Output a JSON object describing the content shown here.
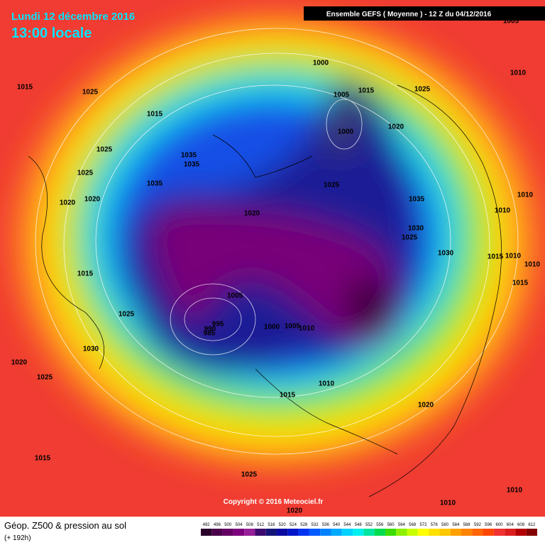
{
  "header": {
    "date": "Lundi 12 décembre 2016",
    "time": "13:00 locale",
    "run": "Ensemble GEFS  ( Moyenne )  -  12 Z du 04/12/2016"
  },
  "isobar_labels": [
    1015,
    1025,
    1000,
    1005,
    1015,
    1025,
    1005,
    1010,
    1015,
    1000,
    1020,
    1025,
    1025,
    1035,
    1035,
    1035,
    1025,
    1020,
    1020,
    1035,
    1010,
    1010,
    1020,
    1030,
    1025,
    1030,
    1015,
    1010,
    1010,
    1015,
    1015,
    1005,
    1025,
    995,
    990,
    985,
    1000,
    1005,
    1010,
    1030,
    1020,
    1025,
    1010,
    1015,
    1020,
    1015,
    1025,
    1010,
    1010,
    1020
  ],
  "copyright": "Copyright © 2016 Meteociel.fr",
  "legend": {
    "title": "Géop. Z500 & pression au sol",
    "lead": "(+ 192h)",
    "values": [
      492,
      496,
      500,
      504,
      508,
      512,
      516,
      520,
      524,
      528,
      532,
      536,
      540,
      544,
      548,
      552,
      556,
      560,
      564,
      568,
      572,
      576,
      580,
      584,
      588,
      592,
      596,
      600,
      604,
      608,
      612
    ],
    "colors": [
      "#2a002a",
      "#4b004b",
      "#640064",
      "#7d007d",
      "#961e96",
      "#3c0a6e",
      "#141478",
      "#0a0aa0",
      "#0014c8",
      "#0032f0",
      "#005aff",
      "#0082ff",
      "#00aaff",
      "#00d2ff",
      "#00f0f0",
      "#00e6a0",
      "#00dc50",
      "#3cdc00",
      "#8cf000",
      "#c8ff00",
      "#ffff00",
      "#ffe100",
      "#ffc800",
      "#ffa000",
      "#ff8200",
      "#ff6400",
      "#ff4600",
      "#f03232",
      "#dc1e1e",
      "#b40000",
      "#820000"
    ]
  }
}
